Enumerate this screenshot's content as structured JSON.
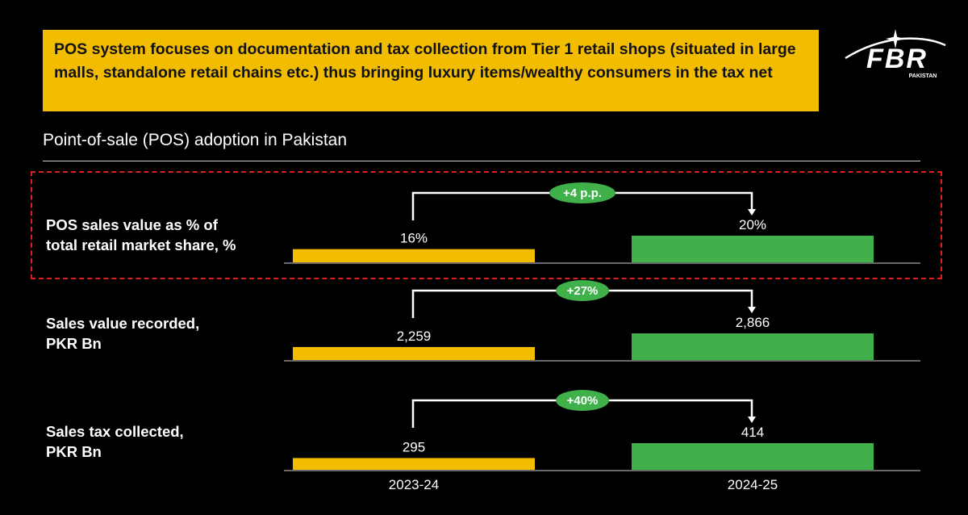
{
  "banner": {
    "text": "POS system focuses on documentation and tax collection from Tier 1 retail shops (situated in large malls, standalone retail chains etc.) thus bringing luxury items/wealthy consumers in the tax net"
  },
  "logo": {
    "wordmark": "FBR",
    "subtitle": "PAKISTAN"
  },
  "section_title": "Point-of-sale (POS) adoption in Pakistan",
  "colors": {
    "bar_2023": "#f2bc00",
    "bar_2024": "#3fb04a",
    "badge": "#3fb04a",
    "highlight": "#e02020"
  },
  "chart_data": {
    "type": "bar",
    "categories": [
      "2023-24",
      "2024-25"
    ],
    "rows": [
      {
        "label_lines": [
          "POS sales value as % of",
          "total retail market share, %"
        ],
        "values": [
          16,
          20
        ],
        "display": [
          "16%",
          "20%"
        ],
        "change": "+4 p.p.",
        "highlighted": true
      },
      {
        "label_lines": [
          "Sales value recorded,",
          "PKR Bn"
        ],
        "values": [
          2259,
          2866
        ],
        "display": [
          "2,259",
          "2,866"
        ],
        "change": "+27%",
        "highlighted": false
      },
      {
        "label_lines": [
          "Sales tax collected,",
          "PKR Bn"
        ],
        "values": [
          295,
          414
        ],
        "display": [
          "295",
          "414"
        ],
        "change": "+40%",
        "highlighted": false
      }
    ]
  }
}
